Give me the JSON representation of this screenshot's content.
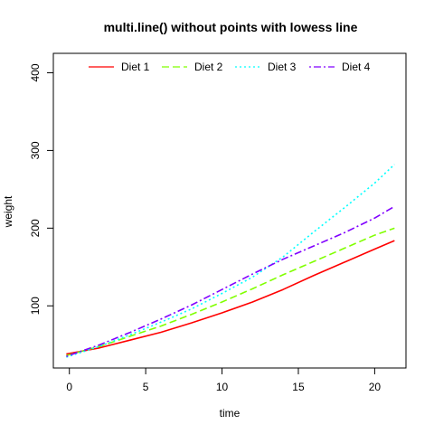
{
  "chart_data": {
    "type": "line",
    "title": "multi.line() without points with lowess line",
    "xlabel": "time",
    "ylabel": "weight",
    "xlim": [
      -1.05,
      22.05
    ],
    "ylim": [
      20,
      425
    ],
    "xticks": [
      0,
      5,
      10,
      15,
      20
    ],
    "yticks": [
      100,
      200,
      300,
      400
    ],
    "grid": false,
    "legend_position": "top",
    "series": [
      {
        "name": "Diet 1",
        "color": "#ff0000",
        "dash": "solid",
        "x": [
          -0.2,
          2,
          4,
          6,
          8,
          10,
          12,
          14,
          16,
          18,
          20,
          21.3
        ],
        "values": [
          38,
          46,
          56,
          66,
          78,
          91,
          105,
          121,
          139,
          156,
          173,
          184
        ]
      },
      {
        "name": "Diet 2",
        "color": "#80ff00",
        "dash": "dashed",
        "x": [
          -0.2,
          2,
          4,
          6,
          8,
          10,
          12,
          14,
          16,
          18,
          20,
          21.3
        ],
        "values": [
          36,
          48,
          61,
          74,
          89,
          105,
          122,
          140,
          157,
          174,
          191,
          200
        ]
      },
      {
        "name": "Diet 3",
        "color": "#00ffff",
        "dash": "dotted",
        "x": [
          -0.2,
          2,
          4,
          6,
          8,
          10,
          12,
          14,
          16,
          18,
          20,
          21.3
        ],
        "values": [
          34,
          48,
          63,
          79,
          96,
          116,
          137,
          163,
          195,
          226,
          258,
          282
        ]
      },
      {
        "name": "Diet 4",
        "color": "#8000ff",
        "dash": "dotdash",
        "x": [
          -0.2,
          2,
          4,
          6,
          8,
          10,
          12,
          14,
          16,
          18,
          20,
          21.3
        ],
        "values": [
          35,
          50,
          66,
          83,
          101,
          121,
          141,
          160,
          177,
          194,
          213,
          228
        ]
      }
    ]
  }
}
